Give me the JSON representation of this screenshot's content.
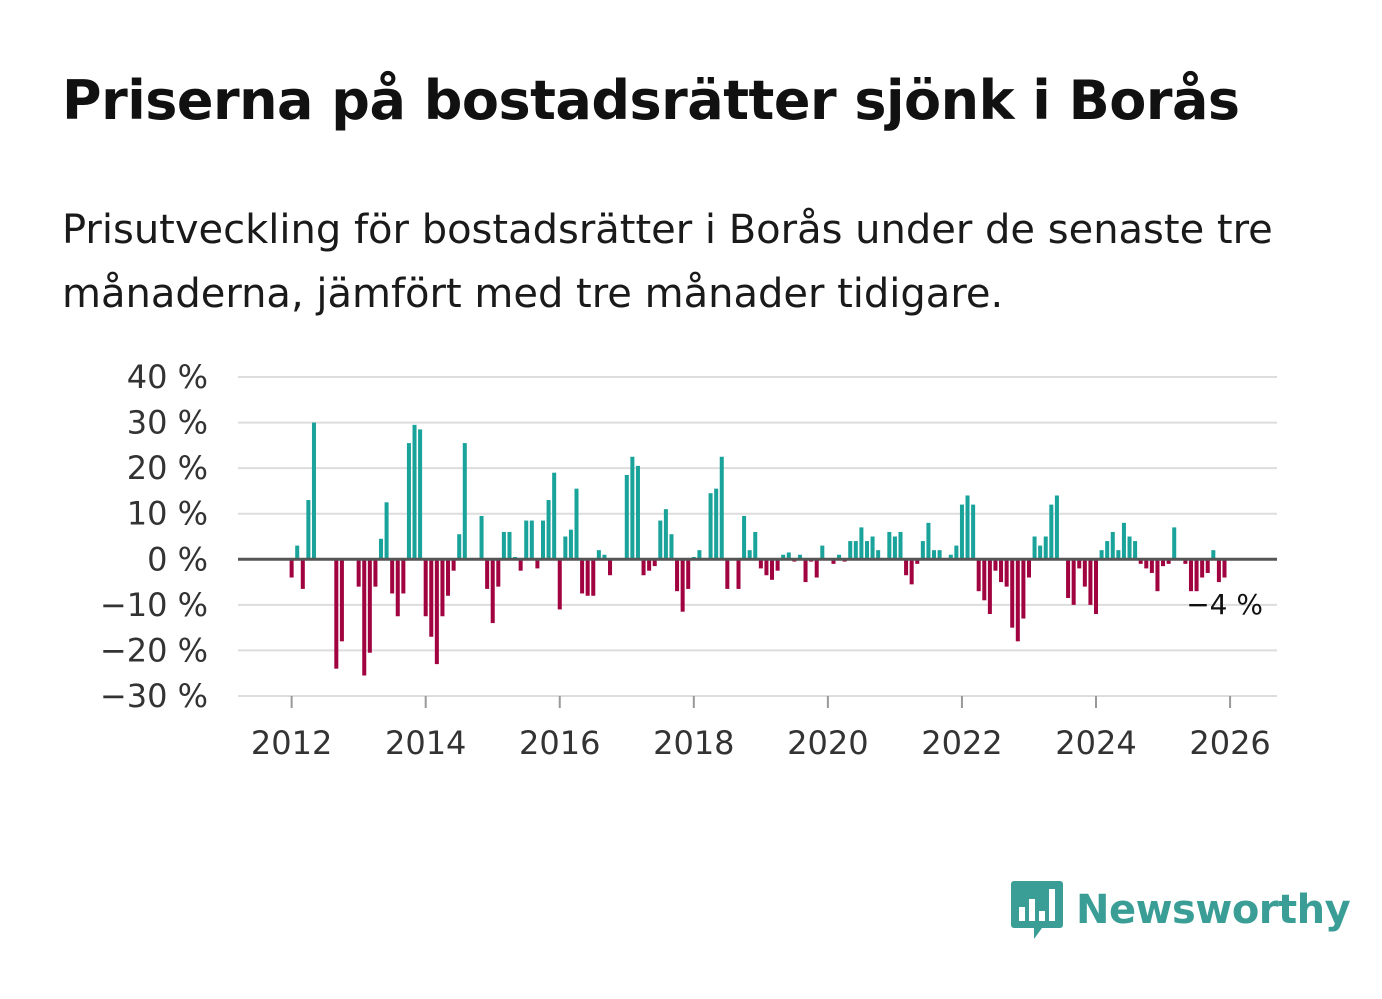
{
  "title": "Priserna på bostadsrätter sjönk i Borås",
  "subtitle": "Prisutveckling för bostadsrätter i Borås under de senaste tre månaderna, jämfört med tre månader tidigare.",
  "brand": "Newsworthy",
  "colors": {
    "positive": "#1aa39b",
    "negative": "#a0033f",
    "grid": "#dddddd",
    "zero": "#555555",
    "brand": "#3a9e96"
  },
  "chart_data": {
    "type": "bar",
    "title": "Priserna på bostadsrätter sjönk i Borås",
    "xlabel": "",
    "ylabel": "",
    "unit": "%",
    "ylim": [
      -30,
      40
    ],
    "xlim": [
      2011.2,
      2026.7
    ],
    "yticks": [
      40,
      30,
      20,
      10,
      0,
      -10,
      -20,
      -30
    ],
    "ytick_labels": [
      "40 %",
      "30 %",
      "20 %",
      "10 %",
      "0 %",
      "−10 %",
      "−20 %",
      "−30 %"
    ],
    "xticks": [
      2012,
      2014,
      2016,
      2018,
      2020,
      2022,
      2024,
      2026
    ],
    "xtick_labels": [
      "2012",
      "2014",
      "2016",
      "2018",
      "2020",
      "2022",
      "2024",
      "2026"
    ],
    "start_year": 2012,
    "start_month": 1,
    "values": [
      -4,
      3,
      -6.5,
      13,
      30,
      null,
      null,
      null,
      -24,
      -18,
      null,
      null,
      -6,
      -25.5,
      -20.5,
      -6,
      4.5,
      12.5,
      -7.5,
      -12.5,
      -7.5,
      25.5,
      29.5,
      28.5,
      -12.5,
      -17,
      -23,
      -12.5,
      -8,
      -2.5,
      5.5,
      25.5,
      null,
      null,
      9.5,
      -6.5,
      -14,
      -6,
      6,
      6,
      0.5,
      -2.5,
      8.5,
      8.5,
      -2,
      8.5,
      13,
      19,
      -11,
      5,
      6.5,
      15.5,
      -7.5,
      -8,
      -8,
      2,
      1,
      -3.5,
      null,
      null,
      18.5,
      22.5,
      20.5,
      -3.5,
      -2.5,
      -1.5,
      8.5,
      11,
      5.5,
      -7,
      -11.5,
      -6.5,
      0.5,
      2,
      null,
      14.5,
      15.5,
      22.5,
      -6.5,
      null,
      -6.5,
      9.5,
      2,
      6,
      -2,
      -3.5,
      -4.5,
      -2.5,
      1,
      1.5,
      -0.5,
      1,
      -5,
      -0.5,
      -4,
      3,
      null,
      -1,
      1,
      -0.5,
      4,
      4,
      7,
      4,
      5,
      2,
      null,
      6,
      5,
      6,
      -3.5,
      -5.5,
      -1,
      4,
      8,
      2,
      2,
      null,
      1,
      3,
      12,
      14,
      12,
      -7,
      -9,
      -12,
      -2.5,
      -5,
      -6,
      -15,
      -18,
      -13,
      -4,
      5,
      3,
      5,
      12,
      14,
      null,
      -8.5,
      -10,
      -2,
      -6,
      -10,
      -12,
      2,
      4,
      6,
      2,
      8,
      5,
      4,
      -1,
      -2,
      -3,
      -7,
      -1.5,
      -1,
      7,
      null,
      -1,
      -7,
      -7,
      -4,
      -3,
      2,
      -5,
      -4
    ],
    "last_label": "−4 %"
  }
}
